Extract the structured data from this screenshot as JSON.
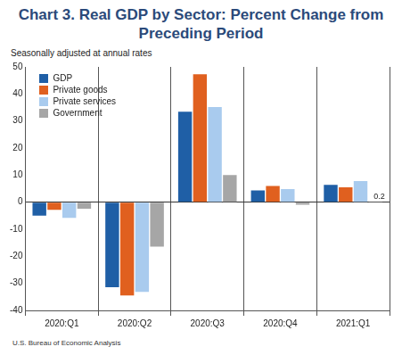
{
  "chart_data": {
    "type": "bar",
    "title": "Chart 3. Real GDP by Sector: Percent Change from Preceding Period",
    "subtitle": "Seasonally adjusted at annual rates",
    "source": "U.S. Bureau of Economic Analysis",
    "categories": [
      "2020:Q1",
      "2020:Q2",
      "2020:Q3",
      "2020:Q4",
      "2021:Q1"
    ],
    "series": [
      {
        "name": "GDP",
        "color": "#1f5fa6",
        "values": [
          -5.0,
          -31.4,
          33.4,
          4.3,
          6.4
        ]
      },
      {
        "name": "Private goods",
        "color": "#e0601f",
        "values": [
          -2.8,
          -34.5,
          47.3,
          6.0,
          5.5
        ]
      },
      {
        "name": "Private services",
        "color": "#a9cbee",
        "values": [
          -5.8,
          -33.2,
          35.2,
          4.8,
          7.8
        ]
      },
      {
        "name": "Government",
        "color": "#a6a6a6",
        "values": [
          -2.4,
          -16.4,
          10.0,
          -0.9,
          0.2
        ]
      }
    ],
    "ylim": [
      -40,
      50
    ],
    "yticks": [
      -40,
      -30,
      -20,
      -10,
      0,
      10,
      20,
      30,
      40,
      50
    ],
    "grid": true,
    "legend": "upper left",
    "annotations": [
      {
        "text": "0.2",
        "series": "Government",
        "category": "2021:Q1"
      }
    ]
  }
}
